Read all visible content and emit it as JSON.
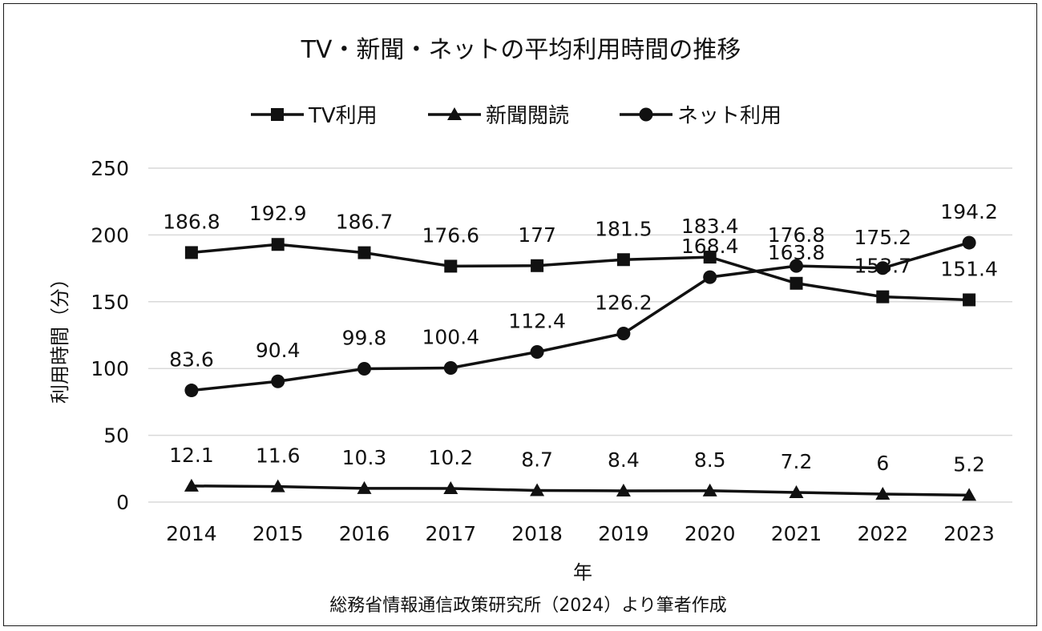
{
  "chart_data": {
    "type": "line",
    "title": "TV・新聞・ネットの平均利用時間の推移",
    "xlabel": "年",
    "ylabel": "利用時間（分）",
    "source": "総務省情報通信政策研究所（2024）より筆者作成",
    "categories": [
      "2014",
      "2015",
      "2016",
      "2017",
      "2018",
      "2019",
      "2020",
      "2021",
      "2022",
      "2023"
    ],
    "ylim": [
      0,
      250
    ],
    "yticks": [
      "0",
      "50",
      "100",
      "150",
      "200",
      "250"
    ],
    "grid": true,
    "legend_position": "top-center",
    "series": [
      {
        "name": "TV利用",
        "marker": "square",
        "values": [
          186.8,
          192.9,
          186.7,
          176.6,
          177,
          181.5,
          183.4,
          163.8,
          153.7,
          151.4
        ],
        "labels": [
          "186.8",
          "192.9",
          "186.7",
          "176.6",
          "177",
          "181.5",
          "183.4",
          "163.8",
          "153.7",
          "151.4"
        ]
      },
      {
        "name": "新聞閲読",
        "marker": "triangle",
        "values": [
          12.1,
          11.6,
          10.3,
          10.2,
          8.7,
          8.4,
          8.5,
          7.2,
          6,
          5.2
        ],
        "labels": [
          "12.1",
          "11.6",
          "10.3",
          "10.2",
          "8.7",
          "8.4",
          "8.5",
          "7.2",
          "6",
          "5.2"
        ]
      },
      {
        "name": "ネット利用",
        "marker": "circle",
        "values": [
          83.6,
          90.4,
          99.8,
          100.4,
          112.4,
          126.2,
          168.4,
          176.8,
          175.2,
          194.2
        ],
        "labels": [
          "83.6",
          "90.4",
          "99.8",
          "100.4",
          "112.4",
          "126.2",
          "168.4",
          "176.8",
          "175.2",
          "194.2"
        ]
      }
    ],
    "colors": {
      "line": "#111111",
      "grid": "#d9d9d9",
      "background": "#ffffff"
    }
  }
}
